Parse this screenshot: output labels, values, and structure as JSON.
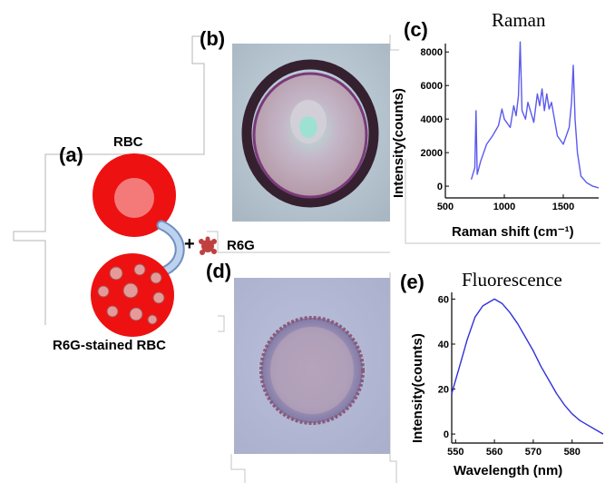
{
  "panels": {
    "a": {
      "letter": "(a)",
      "rbc_label": "RBC",
      "plus": "+",
      "r6g_label": "R6G",
      "stained_label": "R6G-stained RBC",
      "colors": {
        "rbc": "#ee1111",
        "rbc_center": "#f47a7a",
        "arrow": "#8fb0dc",
        "r6g": "#c04040"
      }
    },
    "b": {
      "letter": "(b)"
    },
    "d": {
      "letter": "(d)"
    }
  },
  "chart_data": [
    {
      "panel": "(c)",
      "type": "line",
      "title": "Raman",
      "xlabel": "Raman shift (cm⁻¹)",
      "ylabel": "Intensity(counts)",
      "xlim": [
        500,
        1800
      ],
      "ylim": [
        -700,
        8500
      ],
      "xticks": [
        500,
        1000,
        1500
      ],
      "yticks": [
        0,
        2000,
        4000,
        6000,
        8000
      ],
      "color": "#5a5aee",
      "x": [
        720,
        750,
        760,
        770,
        800,
        850,
        900,
        950,
        980,
        1000,
        1050,
        1080,
        1100,
        1120,
        1135,
        1150,
        1180,
        1200,
        1250,
        1280,
        1300,
        1320,
        1340,
        1360,
        1380,
        1400,
        1450,
        1500,
        1550,
        1570,
        1585,
        1600,
        1620,
        1650,
        1700,
        1750,
        1800
      ],
      "y": [
        400,
        1100,
        4500,
        700,
        1500,
        2500,
        3000,
        3600,
        4600,
        4000,
        3500,
        4800,
        4200,
        5400,
        8600,
        4500,
        4000,
        5000,
        3800,
        5500,
        4800,
        5800,
        4500,
        5500,
        4600,
        5000,
        3000,
        2500,
        3500,
        5000,
        7200,
        4000,
        2000,
        600,
        200,
        0,
        -100
      ]
    },
    {
      "panel": "(e)",
      "type": "line",
      "title": "Fluorescence",
      "xlabel": "Wavelength (nm)",
      "ylabel": "Intensity(counts)",
      "xlim": [
        549,
        588
      ],
      "ylim": [
        -4,
        63
      ],
      "xticks": [
        550,
        560,
        570,
        580
      ],
      "yticks": [
        0,
        20,
        40,
        60
      ],
      "color": "#3030dd",
      "x": [
        549,
        551,
        553,
        555,
        557,
        559,
        560,
        562,
        564,
        566,
        568,
        570,
        572,
        574,
        576,
        578,
        580,
        582,
        584,
        586,
        588
      ],
      "y": [
        18,
        30,
        42,
        52,
        57,
        59,
        60,
        58,
        54,
        49,
        43,
        37,
        30,
        24,
        18,
        13,
        9,
        6,
        4,
        2,
        0
      ]
    }
  ]
}
